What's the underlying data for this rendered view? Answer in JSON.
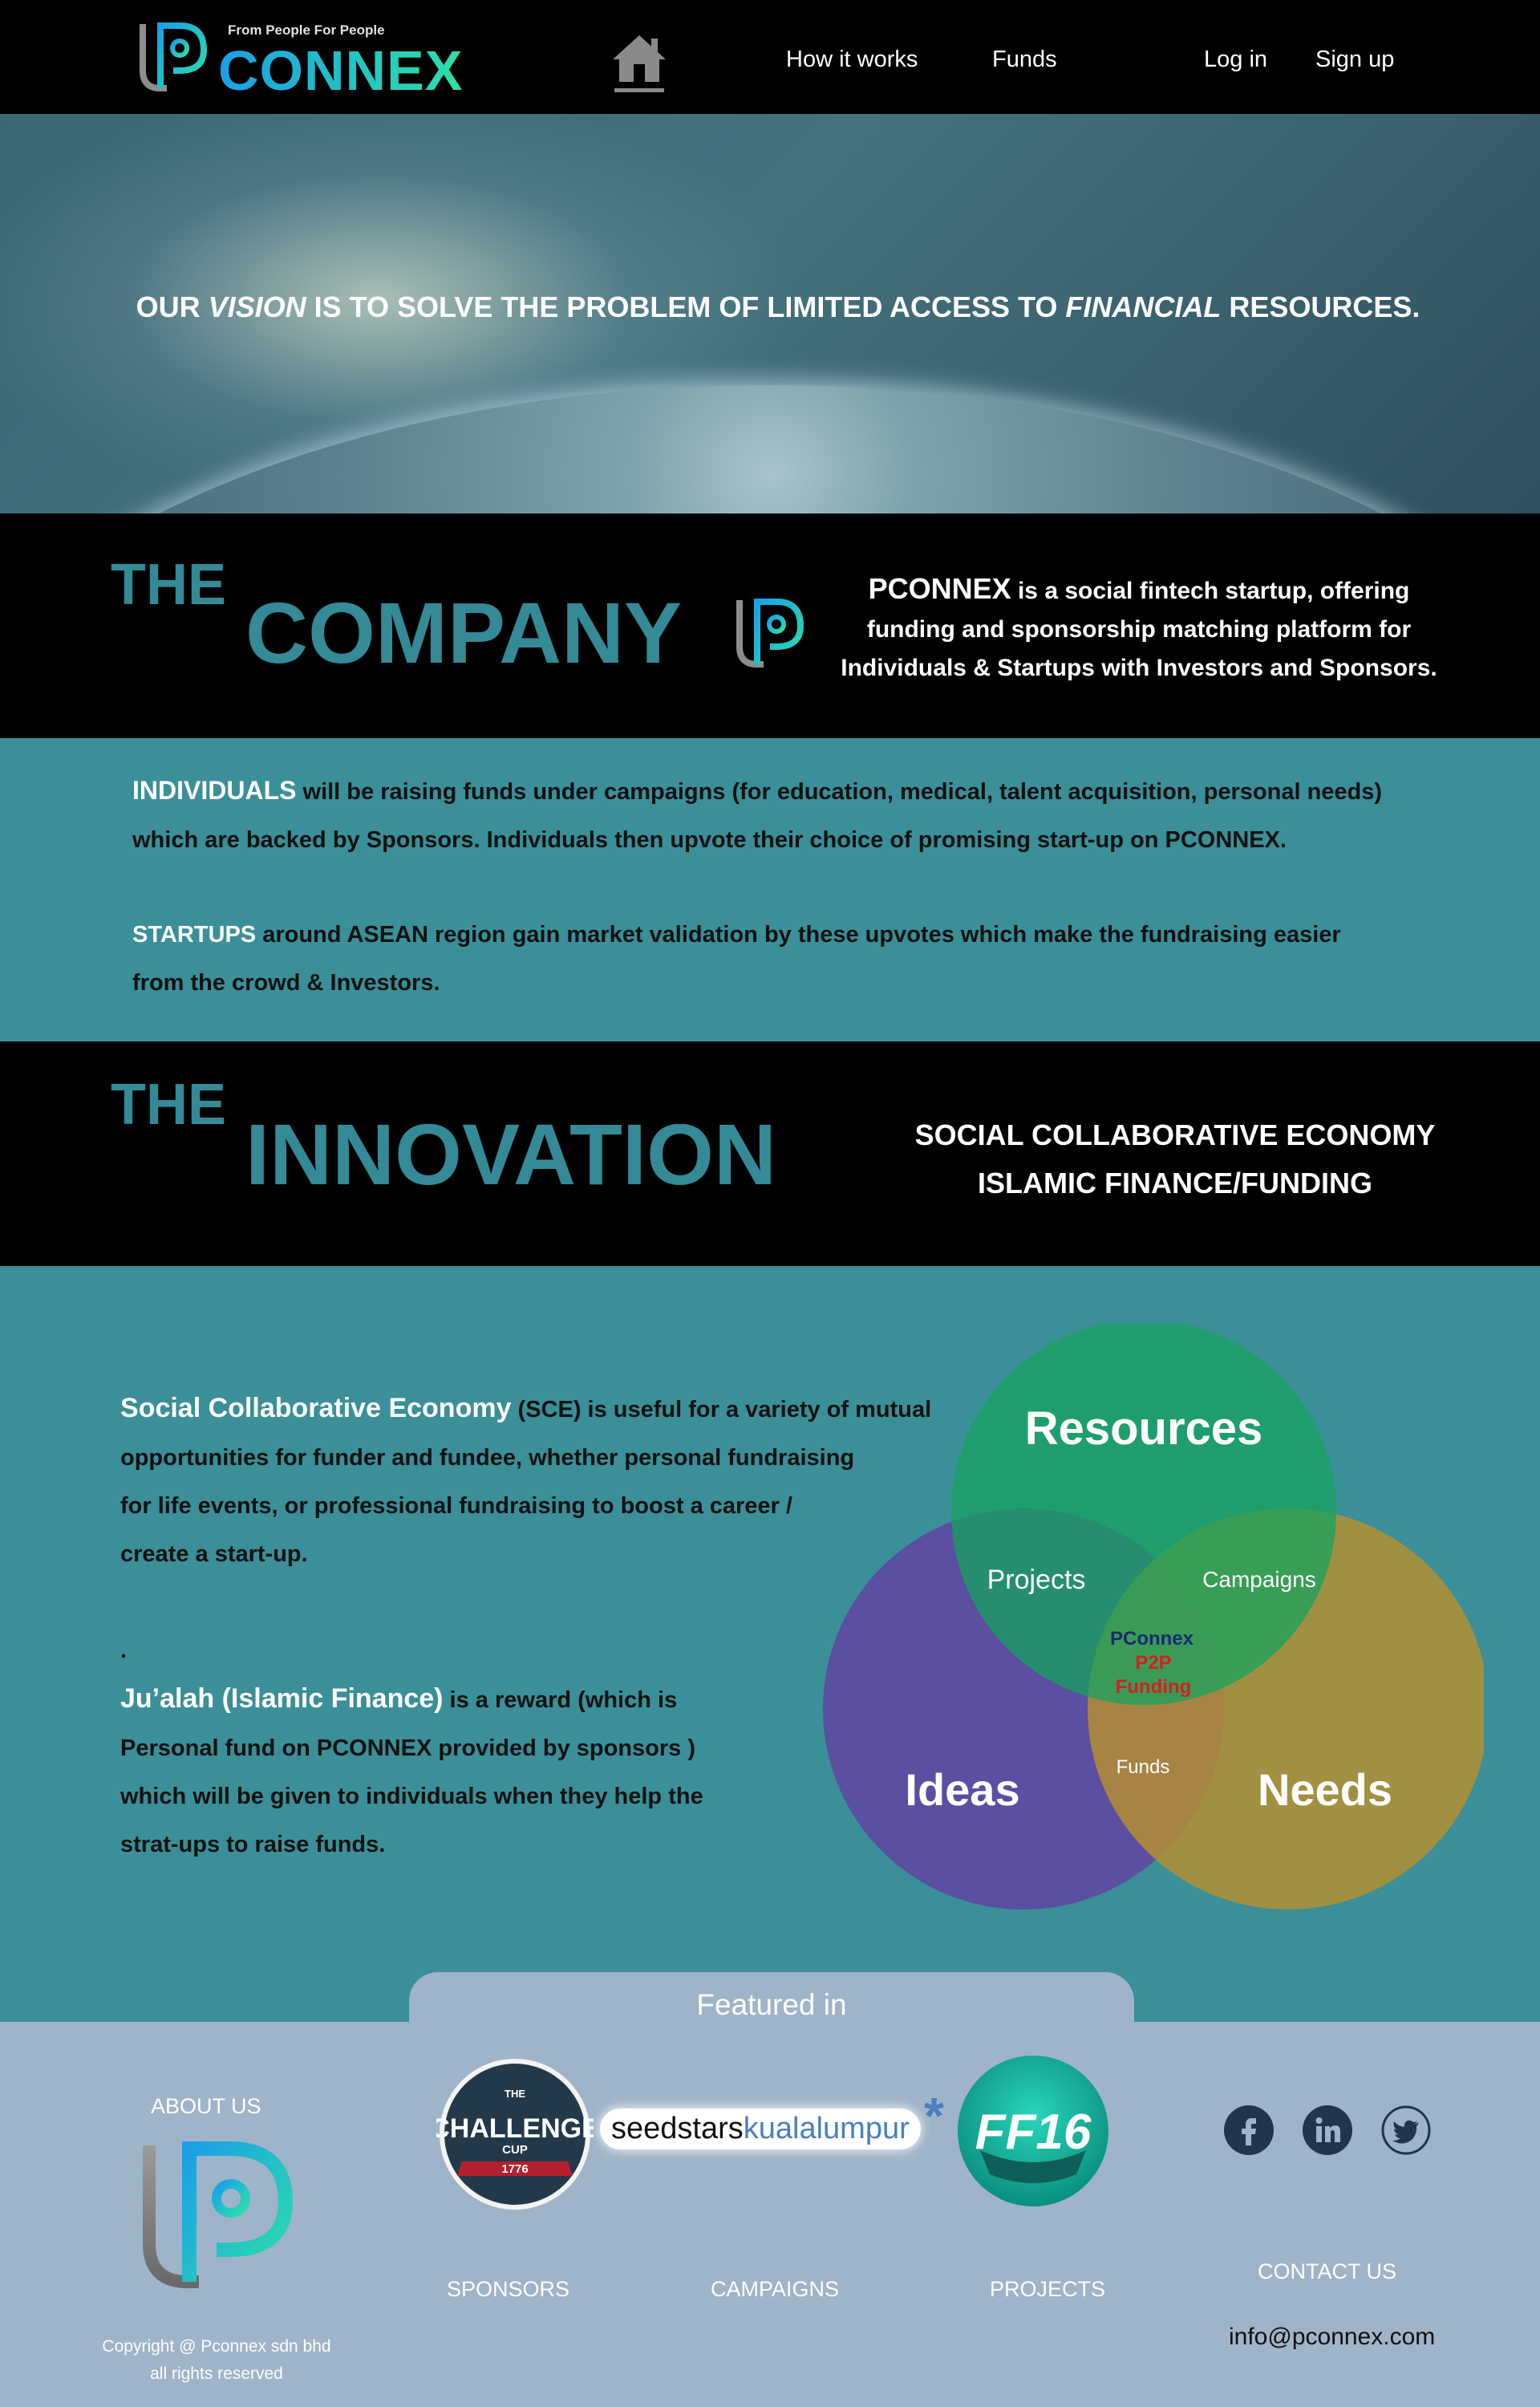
{
  "header": {
    "logo_tagline": "From People For People",
    "logo_wordmark": "CONNEX",
    "home_icon": "home-icon",
    "nav": {
      "how_it_works": "How it works",
      "funds": "Funds",
      "login": "Log in",
      "signup": "Sign up"
    }
  },
  "hero": {
    "vision": {
      "p1": "OUR ",
      "e1": "VISION",
      "p2": " IS TO SOLVE THE PROBLEM OF LIMITED ACCESS TO ",
      "e2": "FINANCIAL",
      "p3": " RESOURCES."
    }
  },
  "company": {
    "the": "THE",
    "title": "COMPANY",
    "brand": "PCONNEX",
    "desc_line1": " is a social fintech startup, offering",
    "desc_line2": "funding and sponsorship matching platform for",
    "desc_line3": "Individuals & Startups with Investors and Sponsors.",
    "individuals_lead": "INDIVIDUALS",
    "individuals_text1": " will be raising funds under campaigns (for education, medical, talent acquisition, personal needs)",
    "individuals_text2": "which are backed by Sponsors. Individuals then upvote their choice of promising start-up on PCONNEX.",
    "startups_lead": "STARTUPS",
    "startups_text1": "  around  ASEAN  region gain market validation by these upvotes which make the fundraising easier",
    "startups_text2": "from the crowd & Investors."
  },
  "innovation": {
    "the": "THE",
    "title": "INNOVATION",
    "line1": "SOCIAL COLLABORATIVE ECONOMY",
    "line2": "ISLAMIC FINANCE/FUNDING",
    "sce_lead": "Social Collaborative Economy",
    "sce_text1": " (SCE) is useful for a variety of mutual",
    "sce_text2": "opportunities for funder and fundee, whether personal fundraising",
    "sce_text3": "for life events, or professional fundraising to boost a career /",
    "sce_text4": "create a start-up.",
    "dot": ".",
    "jualah_lead": "Ju’alah (Islamic Finance)",
    "jualah_text1": " is a reward (which is",
    "jualah_text2": "Personal fund on PCONNEX provided by sponsors )",
    "jualah_text3": "which will be given to individuals when they help the",
    "jualah_text4": "strat-ups to raise funds."
  },
  "venn": {
    "resources": "Resources",
    "ideas": "Ideas",
    "needs": "Needs",
    "projects": "Projects",
    "campaigns": "Campaigns",
    "funds": "Funds",
    "center1": "PConnex",
    "center2": "P2P",
    "center3": "Funding",
    "colors": {
      "resources": "#16a35e",
      "ideas": "#5a4fa0",
      "needs": "#b8902e"
    }
  },
  "footer": {
    "featured_in": "Featured in",
    "about_us": "ABOUT US",
    "sponsors": "SPONSORS",
    "campaigns": "CAMPAIGNS",
    "projects": "PROJECTS",
    "contact_us": "CONTACT US",
    "email": "info@pconnex.com",
    "copyright1": "Copyright @ Pconnex sdn bhd",
    "copyright2": "all rights reserved",
    "badges": {
      "challenge_the": "THE",
      "challenge_main": "CHALLENGE",
      "challenge_cup": "CUP",
      "challenge_year": "1776",
      "seedstars": "seedstars",
      "seedstars_city": "kualalumpur",
      "ff16": "FF16"
    },
    "social_icons": [
      "facebook-icon",
      "linkedin-icon",
      "twitter-icon"
    ]
  }
}
